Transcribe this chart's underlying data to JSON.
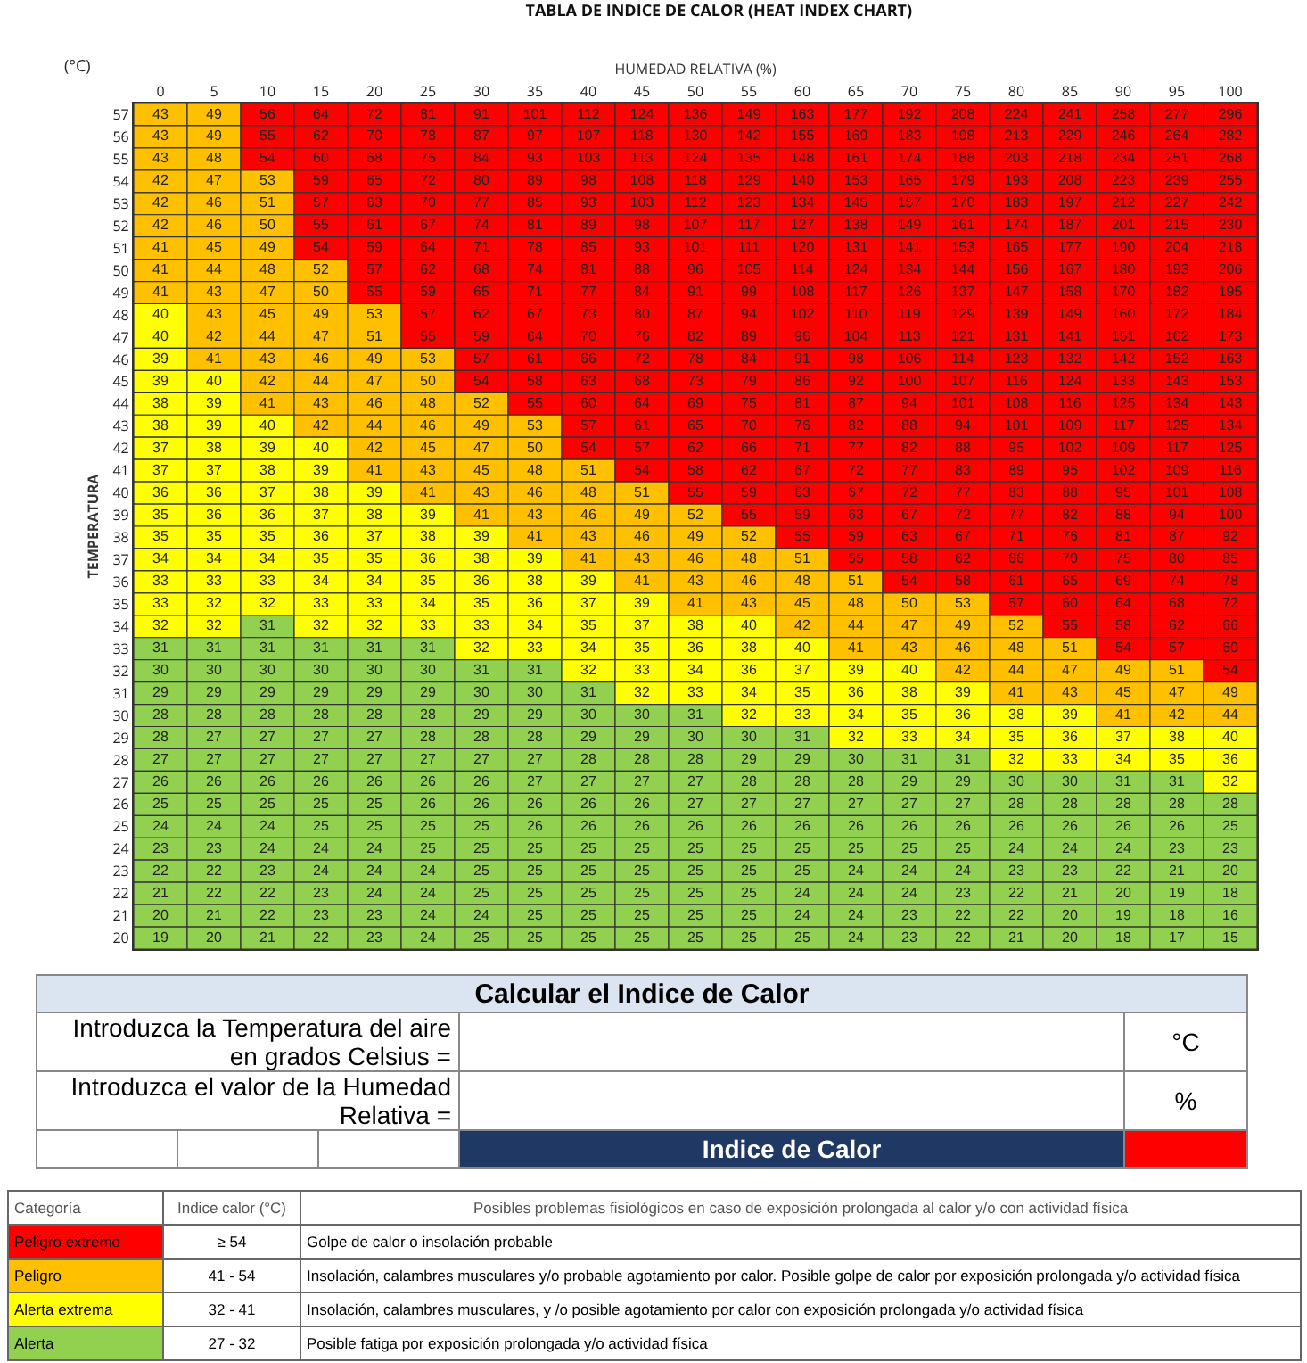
{
  "chart_data": [
    {
      "type": "heatmap",
      "title": "TABLA DE INDICE DE CALOR (HEAT INDEX CHART)",
      "xlabel": "HUMEDAD RELATIVA (%)",
      "ylabel": "TEMPERATURA",
      "annotations": [
        "(°C)"
      ],
      "data_labels": true,
      "categories": [
        "0",
        "5",
        "10",
        "15",
        "20",
        "25",
        "30",
        "35",
        "40",
        "45",
        "50",
        "55",
        "60",
        "65",
        "70",
        "75",
        "80",
        "85",
        "90",
        "95",
        "100"
      ],
      "y_categories": [
        "57",
        "56",
        "55",
        "54",
        "53",
        "52",
        "51",
        "50",
        "49",
        "48",
        "47",
        "46",
        "45",
        "44",
        "43",
        "42",
        "41",
        "40",
        "39",
        "38",
        "37",
        "36",
        "35",
        "34",
        "33",
        "32",
        "31",
        "30",
        "29",
        "28",
        "27",
        "26",
        "25",
        "24",
        "23",
        "22",
        "21",
        "20"
      ],
      "cells": [
        [
          43,
          49,
          56,
          64,
          72,
          81,
          91,
          101,
          112,
          124,
          136,
          149,
          163,
          177,
          192,
          208,
          224,
          241,
          258,
          277,
          296
        ],
        [
          43,
          49,
          55,
          62,
          70,
          78,
          87,
          97,
          107,
          118,
          130,
          142,
          155,
          169,
          183,
          198,
          213,
          229,
          246,
          264,
          282
        ],
        [
          43,
          48,
          54,
          60,
          68,
          75,
          84,
          93,
          103,
          113,
          124,
          135,
          148,
          161,
          174,
          188,
          203,
          218,
          234,
          251,
          268
        ],
        [
          42,
          47,
          53,
          59,
          65,
          72,
          80,
          89,
          98,
          108,
          118,
          129,
          140,
          153,
          165,
          179,
          193,
          208,
          223,
          239,
          255
        ],
        [
          42,
          46,
          51,
          57,
          63,
          70,
          77,
          85,
          93,
          103,
          112,
          123,
          134,
          145,
          157,
          170,
          183,
          197,
          212,
          227,
          242
        ],
        [
          42,
          46,
          50,
          55,
          61,
          67,
          74,
          81,
          89,
          98,
          107,
          117,
          127,
          138,
          149,
          161,
          174,
          187,
          201,
          215,
          230
        ],
        [
          41,
          45,
          49,
          54,
          59,
          64,
          71,
          78,
          85,
          93,
          101,
          111,
          120,
          131,
          141,
          153,
          165,
          177,
          190,
          204,
          218
        ],
        [
          41,
          44,
          48,
          52,
          57,
          62,
          68,
          74,
          81,
          88,
          96,
          105,
          114,
          124,
          134,
          144,
          156,
          167,
          180,
          193,
          206
        ],
        [
          41,
          43,
          47,
          50,
          55,
          59,
          65,
          71,
          77,
          84,
          91,
          99,
          108,
          117,
          126,
          137,
          147,
          158,
          170,
          182,
          195
        ],
        [
          40,
          43,
          45,
          49,
          53,
          57,
          62,
          67,
          73,
          80,
          87,
          94,
          102,
          110,
          119,
          129,
          139,
          149,
          160,
          172,
          184
        ],
        [
          40,
          42,
          44,
          47,
          51,
          55,
          59,
          64,
          70,
          76,
          82,
          89,
          96,
          104,
          113,
          121,
          131,
          141,
          151,
          162,
          173
        ],
        [
          39,
          41,
          43,
          46,
          49,
          53,
          57,
          61,
          66,
          72,
          78,
          84,
          91,
          98,
          106,
          114,
          123,
          132,
          142,
          152,
          163
        ],
        [
          39,
          40,
          42,
          44,
          47,
          50,
          54,
          58,
          63,
          68,
          73,
          79,
          86,
          92,
          100,
          107,
          116,
          124,
          133,
          143,
          153
        ],
        [
          38,
          39,
          41,
          43,
          46,
          48,
          52,
          55,
          60,
          64,
          69,
          75,
          81,
          87,
          94,
          101,
          108,
          116,
          125,
          134,
          143
        ],
        [
          38,
          39,
          40,
          42,
          44,
          46,
          49,
          53,
          57,
          61,
          65,
          70,
          76,
          82,
          88,
          94,
          101,
          109,
          117,
          125,
          134
        ],
        [
          37,
          38,
          39,
          40,
          42,
          45,
          47,
          50,
          54,
          57,
          62,
          66,
          71,
          77,
          82,
          88,
          95,
          102,
          109,
          117,
          125
        ],
        [
          37,
          37,
          38,
          39,
          41,
          43,
          45,
          48,
          51,
          54,
          58,
          62,
          67,
          72,
          77,
          83,
          89,
          95,
          102,
          109,
          116
        ],
        [
          36,
          36,
          37,
          38,
          39,
          41,
          43,
          46,
          48,
          51,
          55,
          59,
          63,
          67,
          72,
          77,
          83,
          88,
          95,
          101,
          108
        ],
        [
          35,
          36,
          36,
          37,
          38,
          39,
          41,
          43,
          46,
          49,
          52,
          55,
          59,
          63,
          67,
          72,
          77,
          82,
          88,
          94,
          100
        ],
        [
          35,
          35,
          35,
          36,
          37,
          38,
          39,
          41,
          43,
          46,
          49,
          52,
          55,
          59,
          63,
          67,
          71,
          76,
          81,
          87,
          92
        ],
        [
          34,
          34,
          34,
          35,
          35,
          36,
          38,
          39,
          41,
          43,
          46,
          48,
          51,
          55,
          58,
          62,
          66,
          70,
          75,
          80,
          85
        ],
        [
          33,
          33,
          33,
          34,
          34,
          35,
          36,
          38,
          39,
          41,
          43,
          46,
          48,
          51,
          54,
          58,
          61,
          65,
          69,
          74,
          78
        ],
        [
          33,
          32,
          32,
          33,
          33,
          34,
          35,
          36,
          37,
          39,
          41,
          43,
          45,
          48,
          50,
          53,
          57,
          60,
          64,
          68,
          72
        ],
        [
          32,
          32,
          31,
          32,
          32,
          33,
          33,
          34,
          35,
          37,
          38,
          40,
          42,
          44,
          47,
          49,
          52,
          55,
          58,
          62,
          66
        ],
        [
          31,
          31,
          31,
          31,
          31,
          31,
          32,
          33,
          34,
          35,
          36,
          38,
          40,
          41,
          43,
          46,
          48,
          51,
          54,
          57,
          60
        ],
        [
          30,
          30,
          30,
          30,
          30,
          30,
          31,
          31,
          32,
          33,
          34,
          36,
          37,
          39,
          40,
          42,
          44,
          47,
          49,
          51,
          54
        ],
        [
          29,
          29,
          29,
          29,
          29,
          29,
          30,
          30,
          31,
          32,
          33,
          34,
          35,
          36,
          38,
          39,
          41,
          43,
          45,
          47,
          49
        ],
        [
          28,
          28,
          28,
          28,
          28,
          28,
          29,
          29,
          30,
          30,
          31,
          32,
          33,
          34,
          35,
          36,
          38,
          39,
          41,
          42,
          44
        ],
        [
          28,
          27,
          27,
          27,
          27,
          28,
          28,
          28,
          29,
          29,
          30,
          30,
          31,
          32,
          33,
          34,
          35,
          36,
          37,
          38,
          40
        ],
        [
          27,
          27,
          27,
          27,
          27,
          27,
          27,
          27,
          28,
          28,
          28,
          29,
          29,
          30,
          31,
          31,
          32,
          33,
          34,
          35,
          36
        ],
        [
          26,
          26,
          26,
          26,
          26,
          26,
          26,
          27,
          27,
          27,
          27,
          28,
          28,
          28,
          29,
          29,
          30,
          30,
          31,
          31,
          32
        ],
        [
          25,
          25,
          25,
          25,
          25,
          26,
          26,
          26,
          26,
          26,
          27,
          27,
          27,
          27,
          27,
          27,
          28,
          28,
          28,
          28,
          28
        ],
        [
          24,
          24,
          24,
          25,
          25,
          25,
          25,
          26,
          26,
          26,
          26,
          26,
          26,
          26,
          26,
          26,
          26,
          26,
          26,
          26,
          25
        ],
        [
          23,
          23,
          24,
          24,
          24,
          25,
          25,
          25,
          25,
          25,
          25,
          25,
          25,
          25,
          25,
          25,
          24,
          24,
          24,
          23,
          23
        ],
        [
          22,
          22,
          23,
          24,
          24,
          24,
          25,
          25,
          25,
          25,
          25,
          25,
          25,
          24,
          24,
          24,
          23,
          23,
          22,
          21,
          20
        ],
        [
          21,
          22,
          22,
          23,
          24,
          24,
          25,
          25,
          25,
          25,
          25,
          25,
          24,
          24,
          24,
          23,
          22,
          21,
          20,
          19,
          18
        ],
        [
          20,
          21,
          22,
          23,
          23,
          24,
          24,
          25,
          25,
          25,
          25,
          25,
          24,
          24,
          23,
          22,
          22,
          20,
          19,
          18,
          16
        ],
        [
          19,
          20,
          21,
          22,
          23,
          24,
          25,
          25,
          25,
          25,
          25,
          25,
          25,
          24,
          23,
          22,
          21,
          20,
          18,
          17,
          15
        ]
      ]
    },
    {
      "type": "other",
      "title": "Calcular el Indice de Calor",
      "annotations": [
        "Introduzca la Temperatura del aire en grados Celsius =",
        "°C",
        "Introduzca el valor de la Humedad Relativa =",
        "%",
        "Indice de Calor"
      ]
    },
    {
      "type": "other",
      "annotations": [
        "Categoría",
        "Indice calor (°C)",
        "Posibles problemas fisiológicos en caso de exposición prolongada al calor y/o con actividad física",
        "Golpe de calor o insolación probable",
        "Insolación, calambres musculares y/o probable agotamiento por calor. Posible golpe de calor por exposición prolongada y/o actividad física",
        "Insolación, calambres musculares, y /o posible agotamiento por calor con exposición prolongada y/o actividad física",
        "Posible fatiga por exposición prolongada y/o actividad física"
      ],
      "categories": [
        "Peligro extremo",
        "Peligro",
        "Alerta extrema",
        "Alerta"
      ],
      "colors": [
        "#ff0000",
        "#ffc000",
        "#ffff00",
        "#92d050"
      ],
      "values": [
        54,
        41,
        32,
        27
      ],
      "value_labels": [
        "≥ 54",
        "41 - 54",
        "32 - 41",
        "27 - 32"
      ]
    }
  ]
}
